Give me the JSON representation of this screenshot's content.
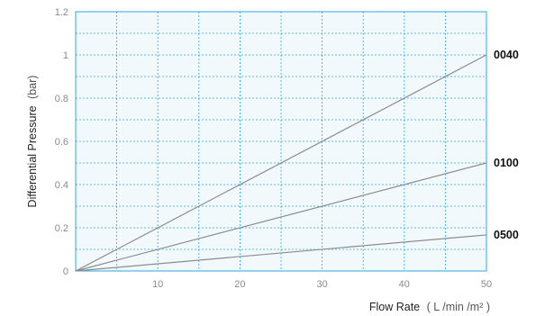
{
  "chart_data": {
    "type": "line",
    "title": "",
    "xlabel": "Flow Rate",
    "xlabel_unit": "( L /min /m² )",
    "ylabel": "Differential Pressure",
    "ylabel_unit": "(bar)",
    "xlim": [
      0,
      50
    ],
    "ylim": [
      0,
      1.2
    ],
    "x_ticks": [
      10,
      20,
      30,
      40,
      50
    ],
    "x_grid_step": 5,
    "y_ticks": [
      0,
      0.2,
      0.4,
      0.6,
      0.8,
      1,
      1.2
    ],
    "y_tick_labels": [
      "0",
      "0.2",
      "0.4",
      "0.6",
      "0.8",
      "1",
      "1.2"
    ],
    "grid": true,
    "colors": {
      "grid": "#29a8e0",
      "plot_background": "#f2f9fd",
      "frame": "#29a8e0",
      "line": "#8c8c8c"
    },
    "series": [
      {
        "name": "0040",
        "x": [
          0,
          50
        ],
        "y": [
          0,
          1.0
        ]
      },
      {
        "name": "0100",
        "x": [
          0,
          50
        ],
        "y": [
          0,
          0.5
        ]
      },
      {
        "name": "0500",
        "x": [
          0,
          50
        ],
        "y": [
          0,
          0.167
        ]
      }
    ]
  }
}
